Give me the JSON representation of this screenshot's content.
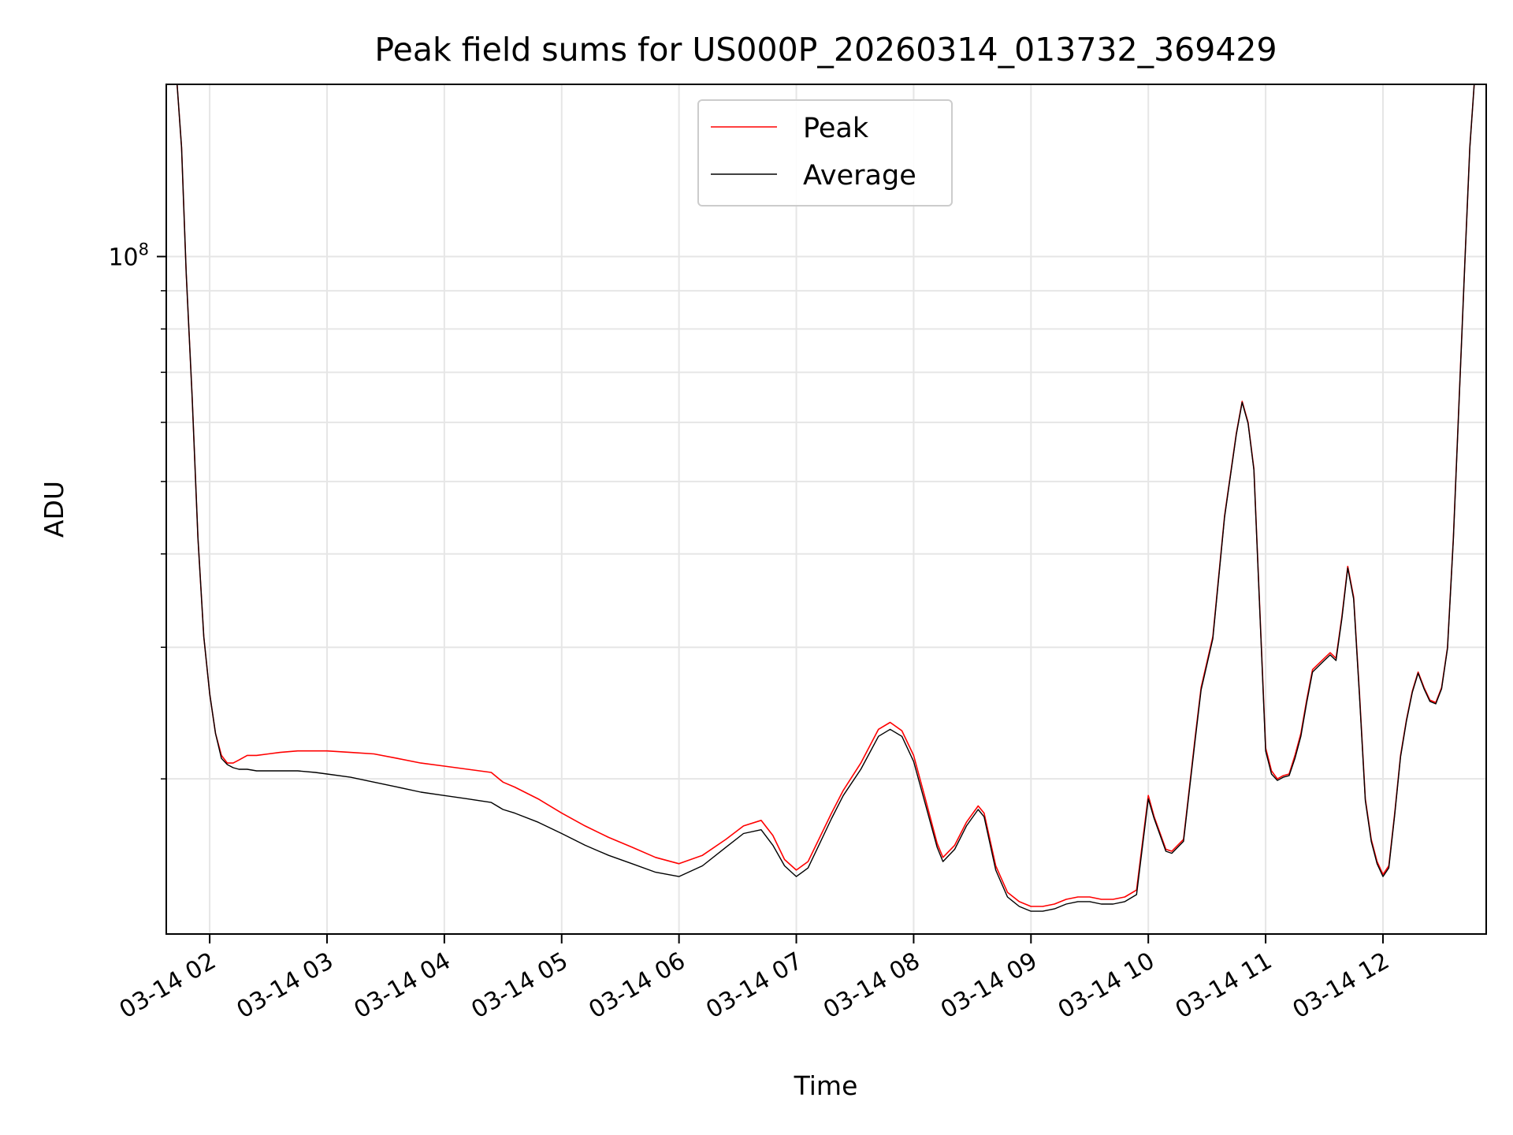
{
  "chart_data": {
    "type": "line",
    "title": "Peak field sums for US000P_20260314_013732_369429",
    "xlabel": "Time",
    "ylabel": "ADU",
    "yscale": "log",
    "xlim": [
      1.63,
      12.88
    ],
    "ylim": [
      12400000,
      170000000
    ],
    "grid": true,
    "legend_position": "upper center",
    "x_ticks": [
      {
        "value": 2,
        "label": "03-14 02"
      },
      {
        "value": 3,
        "label": "03-14 03"
      },
      {
        "value": 4,
        "label": "03-14 04"
      },
      {
        "value": 5,
        "label": "03-14 05"
      },
      {
        "value": 6,
        "label": "03-14 06"
      },
      {
        "value": 7,
        "label": "03-14 07"
      },
      {
        "value": 8,
        "label": "03-14 08"
      },
      {
        "value": 9,
        "label": "03-14 09"
      },
      {
        "value": 10,
        "label": "03-14 10"
      },
      {
        "value": 11,
        "label": "03-14 11"
      },
      {
        "value": 12,
        "label": "03-14 12"
      }
    ],
    "y_major_ticks": [
      {
        "value": 100000000,
        "base": "10",
        "exp": "8"
      }
    ],
    "y_minor_ticks": [
      20000000,
      30000000,
      40000000,
      50000000,
      60000000,
      70000000,
      80000000,
      90000000
    ],
    "series": [
      {
        "name": "Peak",
        "color": "#ff0000",
        "x": [
          1.72,
          1.76,
          1.8,
          1.85,
          1.9,
          1.95,
          2.0,
          2.05,
          2.1,
          2.15,
          2.2,
          2.25,
          2.32,
          2.4,
          2.5,
          2.6,
          2.75,
          2.9,
          3.0,
          3.2,
          3.4,
          3.6,
          3.8,
          4.0,
          4.2,
          4.4,
          4.5,
          4.6,
          4.8,
          5.0,
          5.2,
          5.4,
          5.6,
          5.8,
          6.0,
          6.2,
          6.4,
          6.55,
          6.7,
          6.8,
          6.9,
          7.0,
          7.1,
          7.2,
          7.3,
          7.4,
          7.55,
          7.7,
          7.8,
          7.9,
          8.0,
          8.1,
          8.2,
          8.25,
          8.35,
          8.45,
          8.55,
          8.6,
          8.7,
          8.8,
          8.9,
          9.0,
          9.1,
          9.2,
          9.3,
          9.4,
          9.5,
          9.6,
          9.7,
          9.8,
          9.9,
          10.0,
          10.05,
          10.15,
          10.2,
          10.3,
          10.4,
          10.45,
          10.55,
          10.65,
          10.75,
          10.8,
          10.85,
          10.9,
          11.0,
          11.05,
          11.1,
          11.15,
          11.2,
          11.25,
          11.3,
          11.35,
          11.4,
          11.5,
          11.55,
          11.6,
          11.65,
          11.7,
          11.75,
          11.8,
          11.85,
          11.9,
          11.95,
          12.0,
          12.05,
          12.1,
          12.15,
          12.2,
          12.25,
          12.3,
          12.35,
          12.4,
          12.45,
          12.5,
          12.55,
          12.6,
          12.65,
          12.7,
          12.74,
          12.78
        ],
        "y": [
          172000000,
          140000000,
          95000000,
          65000000,
          42000000,
          31000000,
          26000000,
          23000000,
          21500000,
          21000000,
          21000000,
          21200000,
          21500000,
          21500000,
          21600000,
          21700000,
          21800000,
          21800000,
          21800000,
          21700000,
          21600000,
          21300000,
          21000000,
          20800000,
          20600000,
          20400000,
          19800000,
          19500000,
          18800000,
          18000000,
          17300000,
          16700000,
          16200000,
          15700000,
          15400000,
          15800000,
          16600000,
          17300000,
          17600000,
          16800000,
          15600000,
          15100000,
          15500000,
          16700000,
          18000000,
          19300000,
          21000000,
          23300000,
          23800000,
          23200000,
          21500000,
          18800000,
          16400000,
          15700000,
          16300000,
          17500000,
          18400000,
          18000000,
          15300000,
          14100000,
          13700000,
          13500000,
          13500000,
          13600000,
          13800000,
          13900000,
          13900000,
          13800000,
          13800000,
          13900000,
          14200000,
          19000000,
          17800000,
          16100000,
          16000000,
          16600000,
          22800000,
          26500000,
          31000000,
          45000000,
          58000000,
          64000000,
          60000000,
          52000000,
          22000000,
          20500000,
          20000000,
          20200000,
          20300000,
          21500000,
          23000000,
          25500000,
          28000000,
          29000000,
          29500000,
          29000000,
          33000000,
          38500000,
          35000000,
          26000000,
          18800000,
          16600000,
          15500000,
          14900000,
          15300000,
          18000000,
          21500000,
          24000000,
          26200000,
          27800000,
          26500000,
          25500000,
          25300000,
          26500000,
          30000000,
          42000000,
          65000000,
          100000000,
          140000000,
          172000000
        ]
      },
      {
        "name": "Average",
        "color": "#000000",
        "x": [
          1.72,
          1.76,
          1.8,
          1.85,
          1.9,
          1.95,
          2.0,
          2.05,
          2.1,
          2.15,
          2.2,
          2.25,
          2.32,
          2.4,
          2.5,
          2.6,
          2.75,
          2.9,
          3.0,
          3.2,
          3.4,
          3.6,
          3.8,
          4.0,
          4.2,
          4.4,
          4.5,
          4.6,
          4.8,
          5.0,
          5.2,
          5.4,
          5.6,
          5.8,
          6.0,
          6.2,
          6.4,
          6.55,
          6.7,
          6.8,
          6.9,
          7.0,
          7.1,
          7.2,
          7.3,
          7.4,
          7.55,
          7.7,
          7.8,
          7.9,
          8.0,
          8.1,
          8.2,
          8.25,
          8.35,
          8.45,
          8.55,
          8.6,
          8.7,
          8.8,
          8.9,
          9.0,
          9.1,
          9.2,
          9.3,
          9.4,
          9.5,
          9.6,
          9.7,
          9.8,
          9.9,
          10.0,
          10.05,
          10.15,
          10.2,
          10.3,
          10.4,
          10.45,
          10.55,
          10.65,
          10.75,
          10.8,
          10.85,
          10.9,
          11.0,
          11.05,
          11.1,
          11.15,
          11.2,
          11.25,
          11.3,
          11.35,
          11.4,
          11.5,
          11.55,
          11.6,
          11.65,
          11.7,
          11.75,
          11.8,
          11.85,
          11.9,
          11.95,
          12.0,
          12.05,
          12.1,
          12.15,
          12.2,
          12.25,
          12.3,
          12.35,
          12.4,
          12.45,
          12.5,
          12.55,
          12.6,
          12.65,
          12.7,
          12.74,
          12.78
        ],
        "y": [
          172000000,
          140000000,
          95000000,
          65000000,
          42000000,
          31000000,
          26000000,
          23000000,
          21300000,
          20900000,
          20700000,
          20600000,
          20600000,
          20500000,
          20500000,
          20500000,
          20500000,
          20400000,
          20300000,
          20100000,
          19800000,
          19500000,
          19200000,
          19000000,
          18800000,
          18600000,
          18200000,
          18000000,
          17500000,
          16900000,
          16300000,
          15800000,
          15400000,
          15000000,
          14800000,
          15300000,
          16200000,
          16900000,
          17100000,
          16300000,
          15300000,
          14800000,
          15200000,
          16400000,
          17700000,
          19000000,
          20600000,
          22800000,
          23300000,
          22800000,
          21100000,
          18500000,
          16200000,
          15500000,
          16100000,
          17300000,
          18200000,
          17800000,
          15100000,
          13900000,
          13500000,
          13300000,
          13300000,
          13400000,
          13600000,
          13700000,
          13700000,
          13600000,
          13600000,
          13700000,
          14000000,
          18800000,
          17700000,
          16000000,
          15900000,
          16500000,
          22600000,
          26300000,
          30800000,
          44800000,
          57800000,
          63800000,
          59800000,
          51800000,
          21800000,
          20300000,
          19900000,
          20100000,
          20200000,
          21300000,
          22800000,
          25300000,
          27800000,
          28800000,
          29300000,
          28800000,
          32800000,
          38300000,
          34800000,
          25800000,
          18700000,
          16500000,
          15400000,
          14800000,
          15200000,
          17900000,
          21400000,
          23900000,
          26100000,
          27700000,
          26400000,
          25400000,
          25200000,
          26400000,
          29900000,
          41800000,
          64800000,
          99800000,
          139800000,
          172000000
        ]
      }
    ]
  }
}
